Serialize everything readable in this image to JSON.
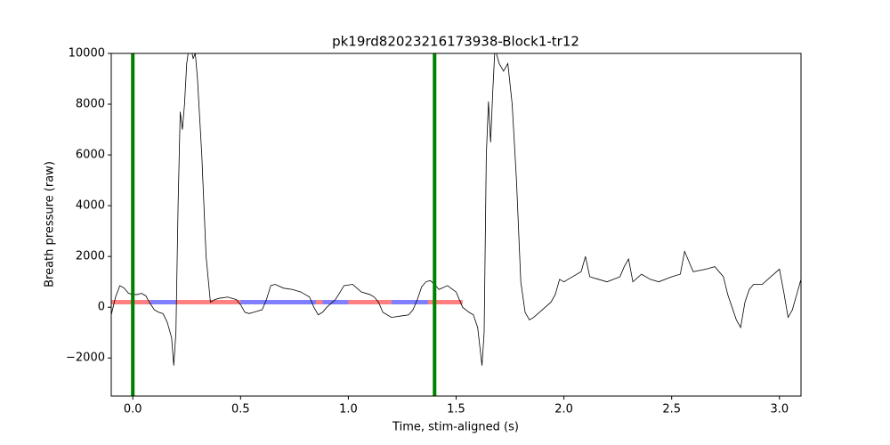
{
  "chart_data": {
    "type": "line",
    "title": "pk19rd82023216173938-Block1-tr12",
    "xlabel": "Time, stim-aligned (s)",
    "ylabel": "Breath pressure (raw)",
    "xlim": [
      -0.1,
      3.1
    ],
    "ylim": [
      -3500,
      10000
    ],
    "xticks": [
      {
        "value": 0,
        "label": "0.0"
      },
      0.5,
      {
        "value": 1,
        "label": "1.0"
      },
      1.5,
      {
        "value": 2,
        "label": "2.0"
      },
      2.5,
      {
        "value": 3,
        "label": "3.0"
      }
    ],
    "yticks": [
      {
        "value": -2000,
        "label": "−2000"
      },
      0,
      2000,
      4000,
      6000,
      8000,
      10000
    ],
    "color": "#000000",
    "x": [
      -0.1,
      -0.08,
      -0.06,
      -0.04,
      -0.02,
      0.0,
      0.02,
      0.04,
      0.06,
      0.08,
      0.1,
      0.12,
      0.14,
      0.16,
      0.18,
      0.19,
      0.2,
      0.21,
      0.22,
      0.23,
      0.24,
      0.25,
      0.26,
      0.27,
      0.28,
      0.29,
      0.3,
      0.32,
      0.34,
      0.36,
      0.38,
      0.4,
      0.44,
      0.48,
      0.5,
      0.52,
      0.54,
      0.56,
      0.6,
      0.62,
      0.64,
      0.66,
      0.7,
      0.74,
      0.78,
      0.82,
      0.84,
      0.86,
      0.88,
      0.9,
      0.94,
      0.98,
      1.02,
      1.06,
      1.1,
      1.12,
      1.14,
      1.16,
      1.2,
      1.24,
      1.28,
      1.3,
      1.32,
      1.34,
      1.36,
      1.38,
      1.4,
      1.42,
      1.46,
      1.5,
      1.53,
      1.56,
      1.58,
      1.6,
      1.62,
      1.63,
      1.64,
      1.65,
      1.66,
      1.67,
      1.68,
      1.7,
      1.72,
      1.74,
      1.76,
      1.78,
      1.8,
      1.82,
      1.84,
      1.86,
      1.9,
      1.94,
      1.96,
      1.98,
      2.0,
      2.04,
      2.08,
      2.1,
      2.12,
      2.16,
      2.2,
      2.26,
      2.28,
      2.3,
      2.32,
      2.36,
      2.4,
      2.44,
      2.5,
      2.54,
      2.56,
      2.58,
      2.6,
      2.66,
      2.7,
      2.74,
      2.76,
      2.78,
      2.8,
      2.82,
      2.84,
      2.86,
      2.88,
      2.92,
      2.96,
      3.0,
      3.02,
      3.04,
      3.06,
      3.08,
      3.1
    ],
    "values": [
      -300,
      400,
      850,
      750,
      550,
      500,
      500,
      550,
      450,
      150,
      -100,
      -200,
      -250,
      -600,
      -1200,
      -2300,
      -1000,
      4000,
      7700,
      7000,
      8000,
      9600,
      10200,
      10200,
      9800,
      10000,
      9000,
      6000,
      2000,
      200,
      300,
      350,
      400,
      300,
      100,
      -200,
      -250,
      -200,
      -100,
      300,
      850,
      900,
      750,
      700,
      600,
      400,
      0,
      -300,
      -200,
      0,
      300,
      850,
      900,
      600,
      500,
      400,
      200,
      -200,
      -400,
      -350,
      -300,
      -100,
      300,
      800,
      1000,
      1050,
      900,
      700,
      850,
      600,
      0,
      -200,
      -300,
      -800,
      -2300,
      -1000,
      6000,
      8100,
      6500,
      8500,
      10200,
      9600,
      9300,
      9600,
      8000,
      5000,
      1000,
      -200,
      -500,
      -400,
      -100,
      200,
      500,
      1100,
      1000,
      1200,
      1400,
      2000,
      1200,
      1100,
      1000,
      1200,
      1600,
      1900,
      1000,
      1300,
      1100,
      1000,
      1200,
      1300,
      2200,
      1800,
      1400,
      1500,
      1600,
      1200,
      500,
      0,
      -500,
      -800,
      200,
      700,
      900,
      900,
      1200,
      1500,
      600,
      -400,
      -100,
      500,
      1100
    ],
    "vlines": {
      "x": [
        0,
        1.4
      ],
      "color": "#008000"
    },
    "segments": [
      {
        "color": "#ff8080",
        "x": [
          -0.1,
          1.53
        ],
        "y": 200
      },
      {
        "color": "#8080ff",
        "x": [
          0.08,
          0.2
        ],
        "y": 200
      },
      {
        "color": "#8080ff",
        "x": [
          0.5,
          0.85
        ],
        "y": 200
      },
      {
        "color": "#8080ff",
        "x": [
          0.88,
          1.0
        ],
        "y": 200
      },
      {
        "color": "#8080ff",
        "x": [
          1.2,
          1.37
        ],
        "y": 200
      }
    ]
  }
}
